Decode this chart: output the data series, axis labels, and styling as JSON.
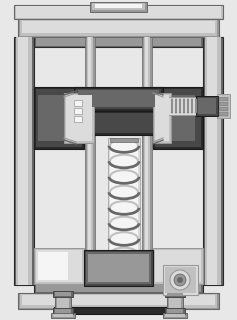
{
  "bg": "#e8e8e8",
  "white": "#f5f5f5",
  "gll": "#dcdcdc",
  "gl": "#c0c0c0",
  "gm": "#989898",
  "gd": "#686868",
  "gdd": "#484848",
  "gvd": "#2a2a2a",
  "black": "#1a1a1a"
}
